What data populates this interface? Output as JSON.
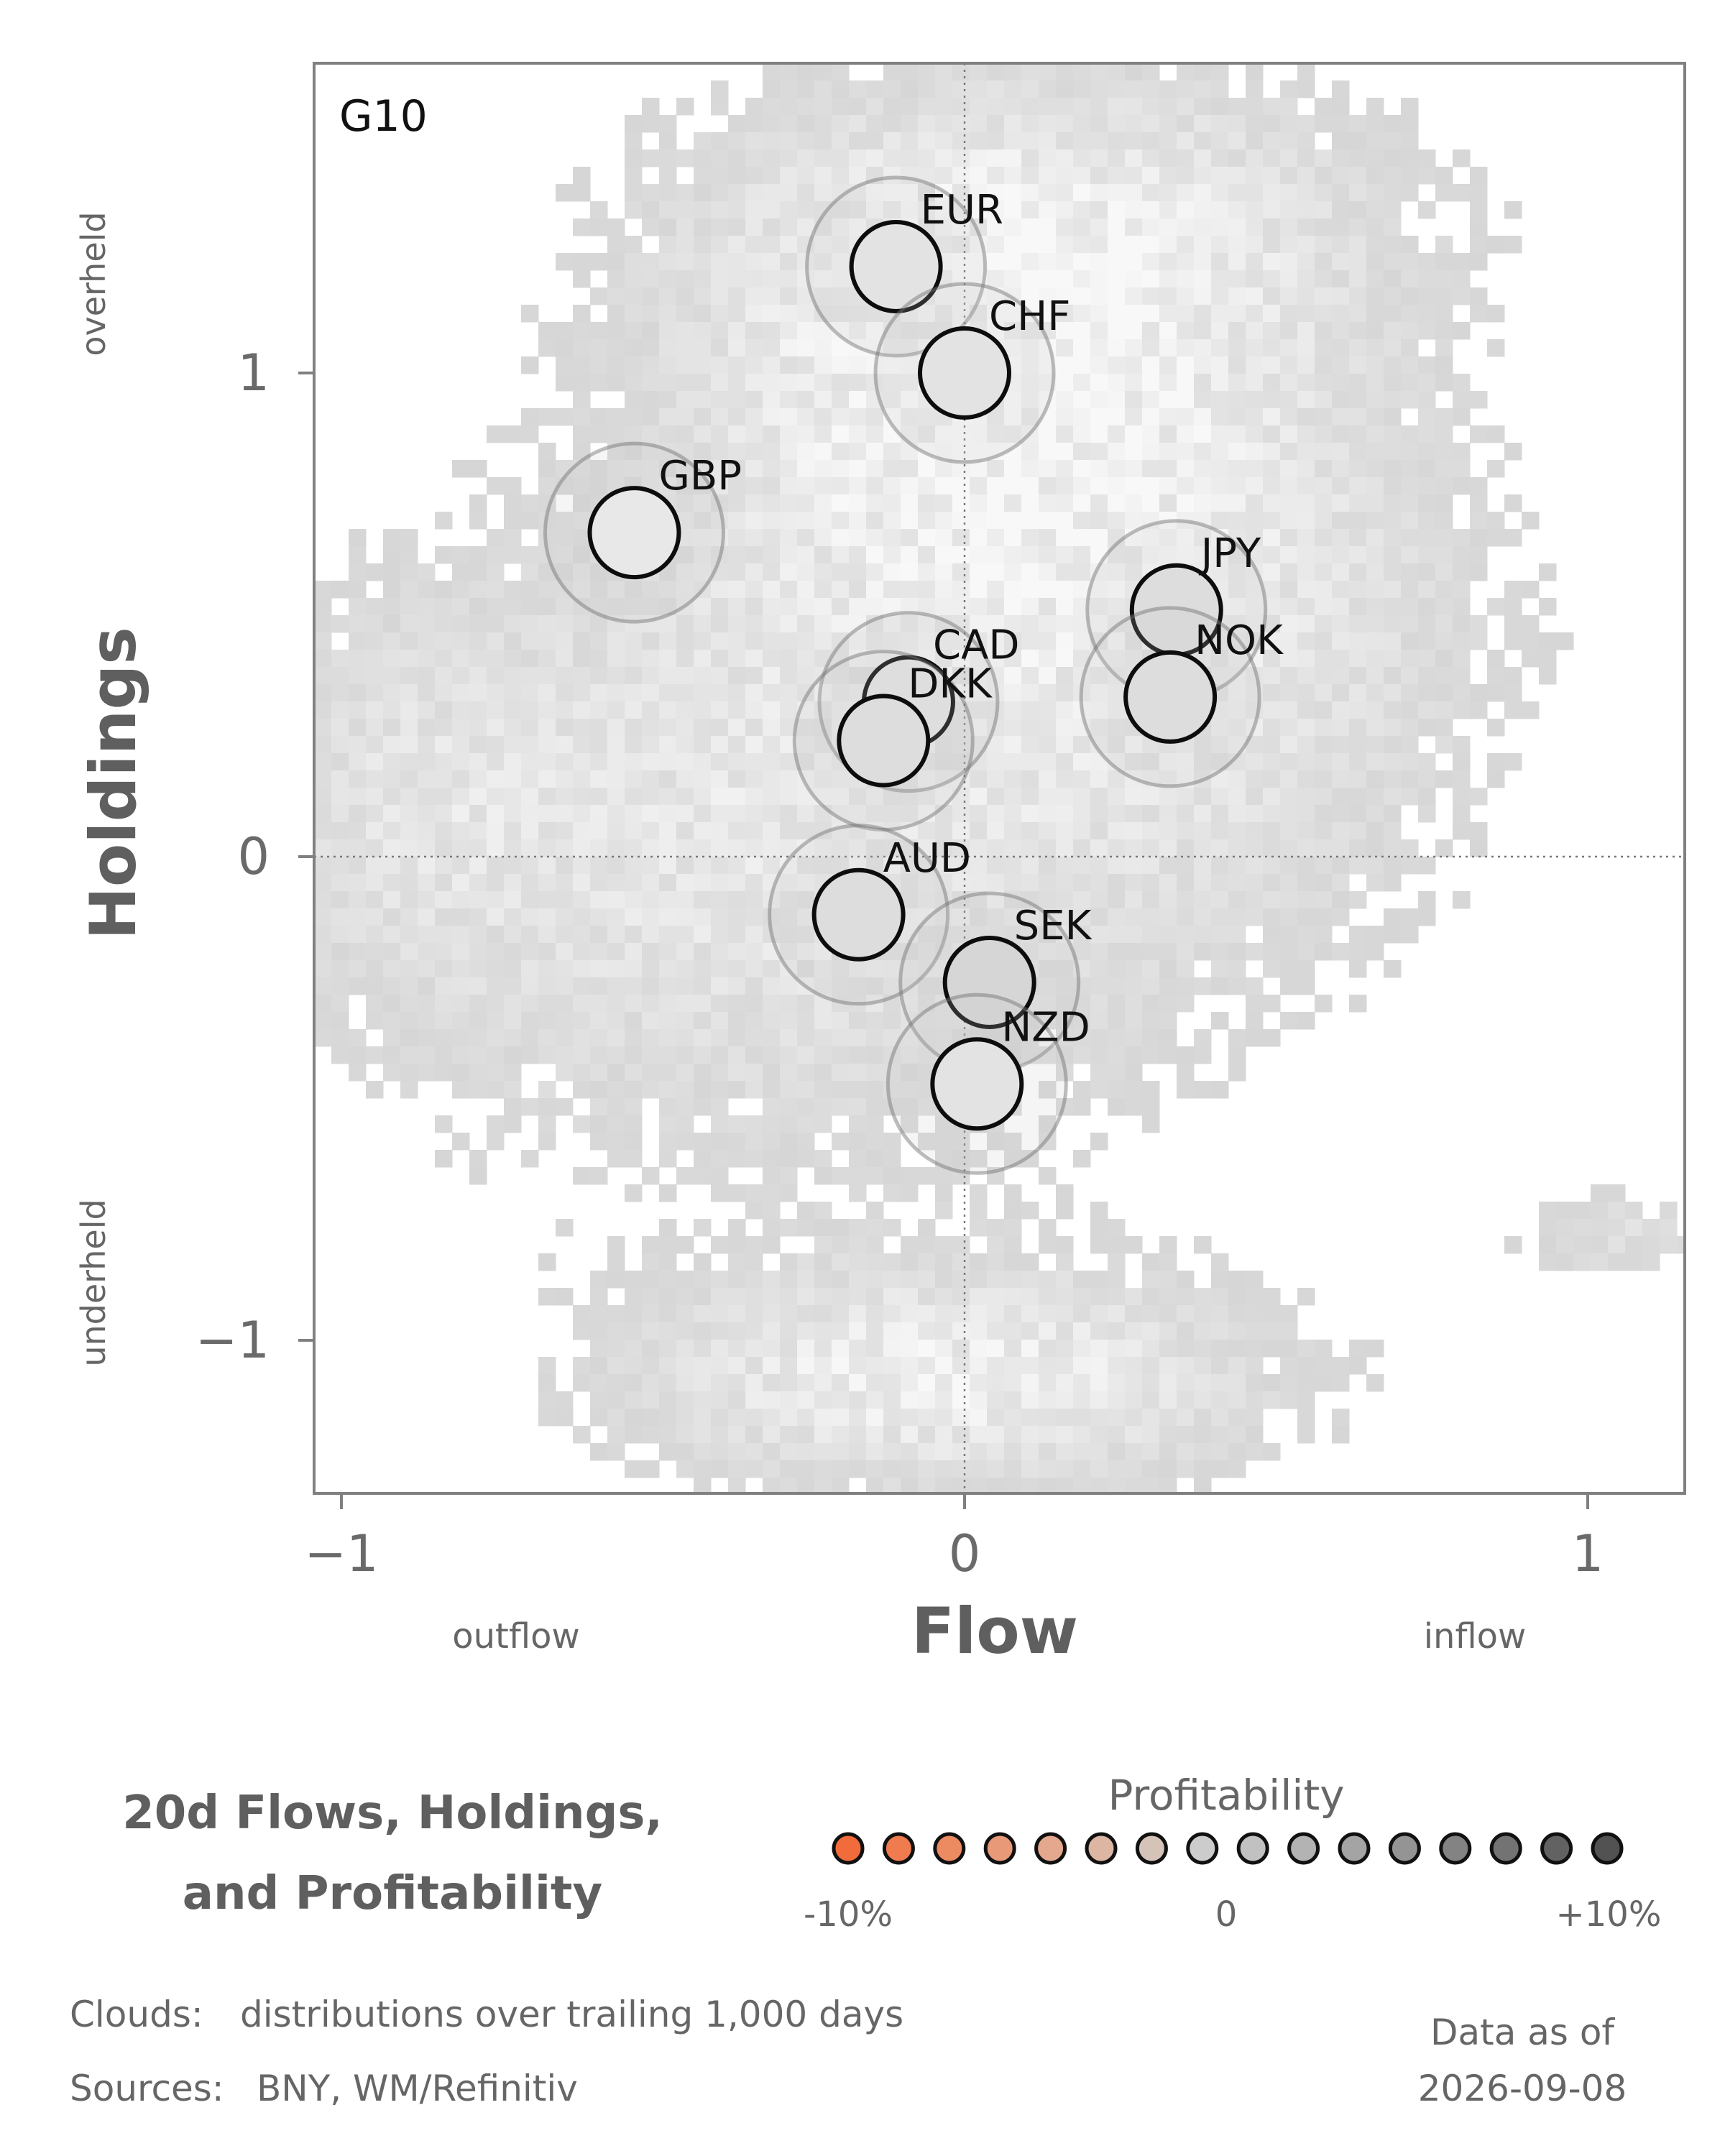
{
  "chart_data": {
    "type": "scatter",
    "panel_label": "G10",
    "xlabel": "Flow",
    "ylabel": "Holdings",
    "x_low_label": "outflow",
    "x_high_label": "inflow",
    "y_high_label": "overheld",
    "y_low_label": "underheld",
    "xlim": [
      -1.05,
      1.15
    ],
    "ylim": [
      -1.32,
      1.64
    ],
    "xticks": [
      {
        "value": -1,
        "label": "−1"
      },
      {
        "value": 0,
        "label": "0"
      },
      {
        "value": 1,
        "label": "1"
      }
    ],
    "yticks": [
      {
        "value": -1,
        "label": "−1"
      },
      {
        "value": 0,
        "label": "0"
      },
      {
        "value": 1,
        "label": "1"
      }
    ],
    "zero_lines": true,
    "points": [
      {
        "name": "EUR",
        "x": -0.11,
        "y": 1.22,
        "profitability": 0.0
      },
      {
        "name": "CHF",
        "x": 0.0,
        "y": 1.0,
        "profitability": 0.0
      },
      {
        "name": "GBP",
        "x": -0.53,
        "y": 0.67,
        "profitability": -0.01
      },
      {
        "name": "JPY",
        "x": 0.34,
        "y": 0.51,
        "profitability": 0.02
      },
      {
        "name": "NOK",
        "x": 0.33,
        "y": 0.33,
        "profitability": 0.02
      },
      {
        "name": "CAD",
        "x": -0.09,
        "y": 0.32,
        "profitability": 0.01
      },
      {
        "name": "DKK",
        "x": -0.13,
        "y": 0.24,
        "profitability": 0.02
      },
      {
        "name": "AUD",
        "x": -0.17,
        "y": -0.12,
        "profitability": 0.02
      },
      {
        "name": "SEK",
        "x": 0.04,
        "y": -0.26,
        "profitability": 0.03
      },
      {
        "name": "NZD",
        "x": 0.02,
        "y": -0.47,
        "profitability": 0.0
      }
    ],
    "cloud": {
      "description_label": "Clouds:",
      "description": "distributions over trailing 1,000 days"
    },
    "colorbar": {
      "title": "Profitability",
      "min_label": "-10%",
      "mid_label": "0",
      "max_label": "+10%",
      "range": [
        -0.1,
        0.1
      ],
      "colors": [
        "#f26b3a",
        "#ef7b4e",
        "#ec8a62",
        "#e89977",
        "#e3a88d",
        "#ddb6a3",
        "#d6c3b8",
        "#cccccc",
        "#c1c1c1",
        "#b3b3b3",
        "#a4a4a4",
        "#949494",
        "#838383",
        "#737373",
        "#626262",
        "#525252"
      ]
    }
  },
  "title_line1": "20d Flows, Holdings,",
  "title_line2": "and Profitability",
  "sources_label": "Sources:",
  "sources": "BNY, WM/Refinitiv",
  "date_label": "Data as of",
  "date": "2026-09-08"
}
